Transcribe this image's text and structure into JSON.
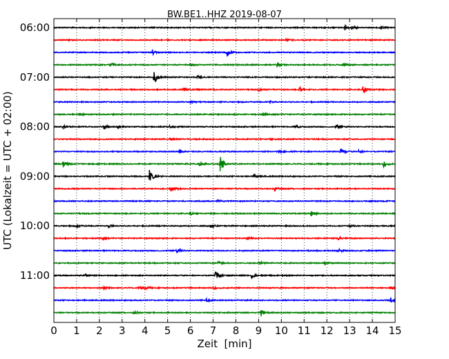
{
  "chart_data": {
    "type": "line",
    "title": "BW.BE1..HHZ 2019-08-07",
    "xlabel": "Zeit  [min]",
    "ylabel": "UTC (Lokalzeit = UTC + 02:00)",
    "xlim": [
      0,
      15
    ],
    "x_ticks": [
      "0",
      "1",
      "2",
      "3",
      "4",
      "5",
      "6",
      "7",
      "8",
      "9",
      "10",
      "11",
      "12",
      "13",
      "14",
      "15"
    ],
    "y_ticks": [
      {
        "label": "06:00",
        "trace": 0
      },
      {
        "label": "07:00",
        "trace": 4
      },
      {
        "label": "08:00",
        "trace": 8
      },
      {
        "label": "09:00",
        "trace": 12
      },
      {
        "label": "10:00",
        "trace": 16
      },
      {
        "label": "11:00",
        "trace": 20
      }
    ],
    "trace_interval_min": 15,
    "trace_colors": [
      "#000000",
      "#ff0000",
      "#0000ff",
      "#008000"
    ],
    "grid": "vertical-dotted",
    "traces": [
      {
        "events": [
          [
            12.8,
            0.5
          ],
          [
            13.1,
            0.35
          ],
          [
            14.4,
            0.25
          ]
        ]
      },
      {
        "events": [
          [
            10.2,
            0.2
          ]
        ]
      },
      {
        "events": [
          [
            4.3,
            0.6
          ],
          [
            7.6,
            0.9
          ]
        ]
      },
      {
        "events": [
          [
            2.5,
            0.3
          ],
          [
            6.0,
            0.3
          ],
          [
            9.8,
            0.4
          ],
          [
            12.7,
            0.35
          ]
        ]
      },
      {
        "events": [
          [
            4.4,
            1.3
          ],
          [
            6.3,
            0.25
          ]
        ]
      },
      {
        "events": [
          [
            5.7,
            0.45
          ],
          [
            9.0,
            0.25
          ],
          [
            10.8,
            0.5
          ],
          [
            13.6,
            1.0
          ]
        ]
      },
      {
        "events": [
          [
            6.0,
            0.2
          ],
          [
            9.5,
            0.2
          ]
        ]
      },
      {
        "events": [
          [
            1.1,
            0.2
          ],
          [
            9.2,
            0.25
          ]
        ]
      },
      {
        "events": [
          [
            0.4,
            0.3
          ],
          [
            2.2,
            0.35
          ],
          [
            2.8,
            0.3
          ],
          [
            5.1,
            0.25
          ],
          [
            10.6,
            0.3
          ],
          [
            12.4,
            0.45
          ]
        ]
      },
      {
        "events": [
          [
            5.1,
            0.3
          ],
          [
            9.5,
            0.25
          ]
        ]
      },
      {
        "events": [
          [
            5.5,
            0.5
          ],
          [
            9.9,
            0.25
          ],
          [
            12.6,
            0.8
          ],
          [
            13.4,
            0.3
          ]
        ]
      },
      {
        "events": [
          [
            0.4,
            0.6
          ],
          [
            6.4,
            0.45
          ],
          [
            7.3,
            1.5
          ],
          [
            14.5,
            0.6
          ]
        ]
      },
      {
        "events": [
          [
            4.2,
            1.4
          ],
          [
            8.8,
            0.5
          ]
        ]
      },
      {
        "events": [
          [
            5.1,
            0.9
          ],
          [
            9.7,
            0.3
          ]
        ]
      },
      {
        "events": [
          [
            7.2,
            0.2
          ]
        ]
      },
      {
        "events": [
          [
            6.0,
            0.25
          ],
          [
            11.3,
            0.6
          ]
        ]
      },
      {
        "events": [
          [
            1.0,
            0.35
          ],
          [
            2.4,
            0.3
          ],
          [
            6.9,
            0.45
          ],
          [
            13.0,
            0.3
          ]
        ]
      },
      {
        "events": [
          [
            2.1,
            0.2
          ],
          [
            8.5,
            0.3
          ],
          [
            12.5,
            0.25
          ]
        ]
      },
      {
        "events": [
          [
            5.4,
            0.45
          ],
          [
            12.5,
            0.35
          ]
        ]
      },
      {
        "events": [
          [
            7.2,
            0.3
          ],
          [
            9.0,
            0.3
          ],
          [
            11.9,
            0.3
          ]
        ]
      },
      {
        "events": [
          [
            1.4,
            0.3
          ],
          [
            7.1,
            0.9
          ],
          [
            8.7,
            0.45
          ]
        ]
      },
      {
        "events": [
          [
            2.2,
            0.25
          ],
          [
            3.7,
            0.3
          ],
          [
            4.0,
            0.25
          ],
          [
            7.0,
            0.3
          ],
          [
            14.8,
            0.3
          ]
        ]
      },
      {
        "events": [
          [
            6.7,
            0.25
          ],
          [
            14.8,
            0.5
          ]
        ]
      },
      {
        "events": [
          [
            3.5,
            0.3
          ],
          [
            9.1,
            0.7
          ]
        ]
      }
    ]
  }
}
